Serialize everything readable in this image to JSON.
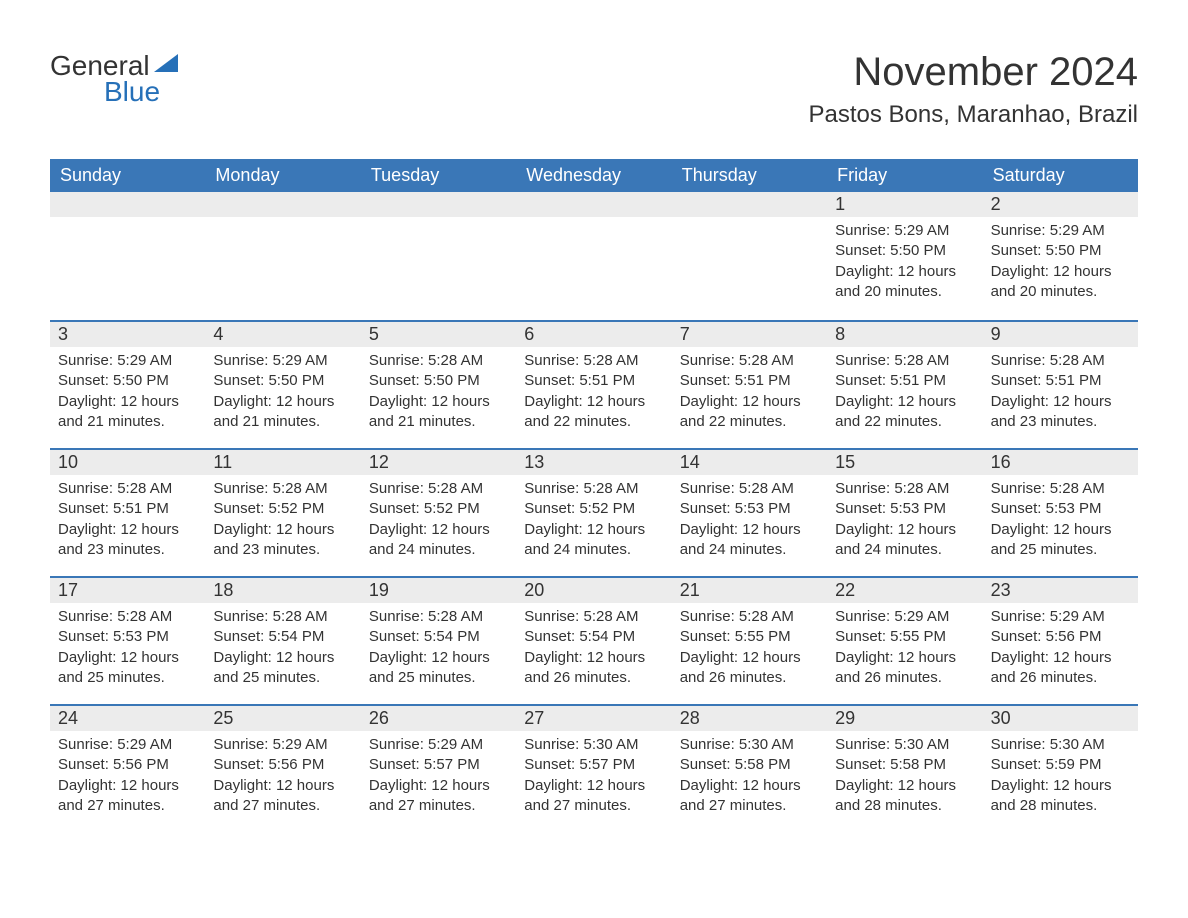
{
  "logo": {
    "word1": "General",
    "word2": "Blue",
    "flag_color": "#2670b8"
  },
  "title": "November 2024",
  "location": "Pastos Bons, Maranhao, Brazil",
  "colors": {
    "header_bg": "#3a77b7",
    "header_text": "#ffffff",
    "band_bg": "#ececec",
    "band_border": "#3a77b7",
    "body_text": "#333333",
    "page_bg": "#ffffff"
  },
  "fonts": {
    "title_size_pt": 30,
    "location_size_pt": 18,
    "weekday_size_pt": 14,
    "daynum_size_pt": 14,
    "body_size_pt": 11
  },
  "weekdays": [
    "Sunday",
    "Monday",
    "Tuesday",
    "Wednesday",
    "Thursday",
    "Friday",
    "Saturday"
  ],
  "weeks": [
    [
      {
        "empty": true
      },
      {
        "empty": true
      },
      {
        "empty": true
      },
      {
        "empty": true
      },
      {
        "empty": true
      },
      {
        "day": "1",
        "sunrise": "Sunrise: 5:29 AM",
        "sunset": "Sunset: 5:50 PM",
        "daylight": "Daylight: 12 hours and 20 minutes."
      },
      {
        "day": "2",
        "sunrise": "Sunrise: 5:29 AM",
        "sunset": "Sunset: 5:50 PM",
        "daylight": "Daylight: 12 hours and 20 minutes."
      }
    ],
    [
      {
        "day": "3",
        "sunrise": "Sunrise: 5:29 AM",
        "sunset": "Sunset: 5:50 PM",
        "daylight": "Daylight: 12 hours and 21 minutes."
      },
      {
        "day": "4",
        "sunrise": "Sunrise: 5:29 AM",
        "sunset": "Sunset: 5:50 PM",
        "daylight": "Daylight: 12 hours and 21 minutes."
      },
      {
        "day": "5",
        "sunrise": "Sunrise: 5:28 AM",
        "sunset": "Sunset: 5:50 PM",
        "daylight": "Daylight: 12 hours and 21 minutes."
      },
      {
        "day": "6",
        "sunrise": "Sunrise: 5:28 AM",
        "sunset": "Sunset: 5:51 PM",
        "daylight": "Daylight: 12 hours and 22 minutes."
      },
      {
        "day": "7",
        "sunrise": "Sunrise: 5:28 AM",
        "sunset": "Sunset: 5:51 PM",
        "daylight": "Daylight: 12 hours and 22 minutes."
      },
      {
        "day": "8",
        "sunrise": "Sunrise: 5:28 AM",
        "sunset": "Sunset: 5:51 PM",
        "daylight": "Daylight: 12 hours and 22 minutes."
      },
      {
        "day": "9",
        "sunrise": "Sunrise: 5:28 AM",
        "sunset": "Sunset: 5:51 PM",
        "daylight": "Daylight: 12 hours and 23 minutes."
      }
    ],
    [
      {
        "day": "10",
        "sunrise": "Sunrise: 5:28 AM",
        "sunset": "Sunset: 5:51 PM",
        "daylight": "Daylight: 12 hours and 23 minutes."
      },
      {
        "day": "11",
        "sunrise": "Sunrise: 5:28 AM",
        "sunset": "Sunset: 5:52 PM",
        "daylight": "Daylight: 12 hours and 23 minutes."
      },
      {
        "day": "12",
        "sunrise": "Sunrise: 5:28 AM",
        "sunset": "Sunset: 5:52 PM",
        "daylight": "Daylight: 12 hours and 24 minutes."
      },
      {
        "day": "13",
        "sunrise": "Sunrise: 5:28 AM",
        "sunset": "Sunset: 5:52 PM",
        "daylight": "Daylight: 12 hours and 24 minutes."
      },
      {
        "day": "14",
        "sunrise": "Sunrise: 5:28 AM",
        "sunset": "Sunset: 5:53 PM",
        "daylight": "Daylight: 12 hours and 24 minutes."
      },
      {
        "day": "15",
        "sunrise": "Sunrise: 5:28 AM",
        "sunset": "Sunset: 5:53 PM",
        "daylight": "Daylight: 12 hours and 24 minutes."
      },
      {
        "day": "16",
        "sunrise": "Sunrise: 5:28 AM",
        "sunset": "Sunset: 5:53 PM",
        "daylight": "Daylight: 12 hours and 25 minutes."
      }
    ],
    [
      {
        "day": "17",
        "sunrise": "Sunrise: 5:28 AM",
        "sunset": "Sunset: 5:53 PM",
        "daylight": "Daylight: 12 hours and 25 minutes."
      },
      {
        "day": "18",
        "sunrise": "Sunrise: 5:28 AM",
        "sunset": "Sunset: 5:54 PM",
        "daylight": "Daylight: 12 hours and 25 minutes."
      },
      {
        "day": "19",
        "sunrise": "Sunrise: 5:28 AM",
        "sunset": "Sunset: 5:54 PM",
        "daylight": "Daylight: 12 hours and 25 minutes."
      },
      {
        "day": "20",
        "sunrise": "Sunrise: 5:28 AM",
        "sunset": "Sunset: 5:54 PM",
        "daylight": "Daylight: 12 hours and 26 minutes."
      },
      {
        "day": "21",
        "sunrise": "Sunrise: 5:28 AM",
        "sunset": "Sunset: 5:55 PM",
        "daylight": "Daylight: 12 hours and 26 minutes."
      },
      {
        "day": "22",
        "sunrise": "Sunrise: 5:29 AM",
        "sunset": "Sunset: 5:55 PM",
        "daylight": "Daylight: 12 hours and 26 minutes."
      },
      {
        "day": "23",
        "sunrise": "Sunrise: 5:29 AM",
        "sunset": "Sunset: 5:56 PM",
        "daylight": "Daylight: 12 hours and 26 minutes."
      }
    ],
    [
      {
        "day": "24",
        "sunrise": "Sunrise: 5:29 AM",
        "sunset": "Sunset: 5:56 PM",
        "daylight": "Daylight: 12 hours and 27 minutes."
      },
      {
        "day": "25",
        "sunrise": "Sunrise: 5:29 AM",
        "sunset": "Sunset: 5:56 PM",
        "daylight": "Daylight: 12 hours and 27 minutes."
      },
      {
        "day": "26",
        "sunrise": "Sunrise: 5:29 AM",
        "sunset": "Sunset: 5:57 PM",
        "daylight": "Daylight: 12 hours and 27 minutes."
      },
      {
        "day": "27",
        "sunrise": "Sunrise: 5:30 AM",
        "sunset": "Sunset: 5:57 PM",
        "daylight": "Daylight: 12 hours and 27 minutes."
      },
      {
        "day": "28",
        "sunrise": "Sunrise: 5:30 AM",
        "sunset": "Sunset: 5:58 PM",
        "daylight": "Daylight: 12 hours and 27 minutes."
      },
      {
        "day": "29",
        "sunrise": "Sunrise: 5:30 AM",
        "sunset": "Sunset: 5:58 PM",
        "daylight": "Daylight: 12 hours and 28 minutes."
      },
      {
        "day": "30",
        "sunrise": "Sunrise: 5:30 AM",
        "sunset": "Sunset: 5:59 PM",
        "daylight": "Daylight: 12 hours and 28 minutes."
      }
    ]
  ]
}
